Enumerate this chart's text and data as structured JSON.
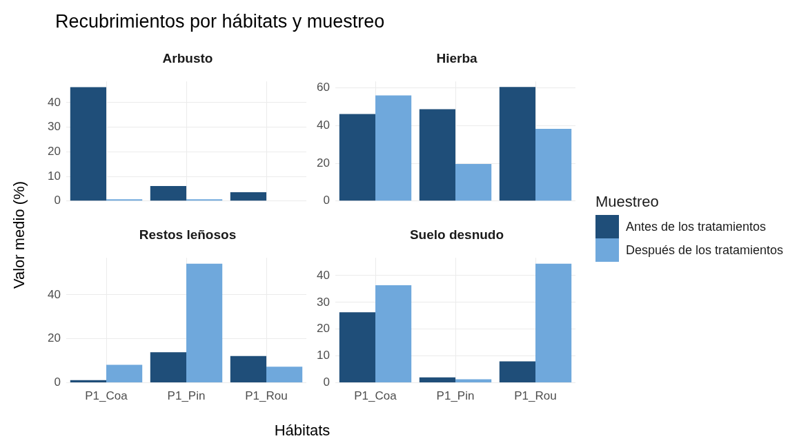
{
  "chart_data": [
    {
      "type": "bar",
      "title": "Arbusto",
      "annotations": [
        "Recubrimientos por hábitats y muestreo"
      ],
      "ylabel": "Valor medio (%)",
      "legend": "right",
      "legend_title": "Muestreo",
      "categories": [
        null,
        null,
        null
      ],
      "ylim": [
        0,
        48.6
      ],
      "yticks": [
        0,
        10,
        20,
        30,
        40
      ],
      "grid": true,
      "tick_labels": "y",
      "series": [
        {
          "name": "Antes de los tratamientos",
          "color": "#1f4e79",
          "values": [
            46.3,
            6.1,
            3.6
          ]
        },
        {
          "name": "Después de los tratamientos",
          "color": "#6fa8dc",
          "values": [
            0.7,
            0.7,
            null
          ]
        }
      ]
    },
    {
      "type": "bar",
      "title": "Hierba",
      "categories": [
        null,
        null,
        null
      ],
      "ylim": [
        0,
        63.5
      ],
      "yticks": [
        0,
        20,
        40,
        60
      ],
      "grid": true,
      "tick_labels": "y",
      "series": [
        {
          "color": "#1f4e79",
          "values": [
            46.2,
            48.8,
            60.6
          ]
        },
        {
          "color": "#6fa8dc",
          "values": [
            56.1,
            19.7,
            38.3
          ]
        }
      ]
    },
    {
      "type": "bar",
      "title": "Restos leñosos",
      "categories": [
        "P1_Coa",
        "P1_Pin",
        "P1_Rou"
      ],
      "ylim": [
        0,
        56.8
      ],
      "yticks": [
        0,
        20,
        40
      ],
      "grid": true,
      "series": [
        {
          "color": "#1f4e79",
          "values": [
            1.2,
            13.9,
            12.2
          ]
        },
        {
          "color": "#6fa8dc",
          "values": [
            8.2,
            54.1,
            7.3
          ]
        }
      ]
    },
    {
      "type": "bar",
      "title": "Suelo desnudo",
      "xlabel": "Hábitats",
      "categories": [
        "P1_Coa",
        "P1_Pin",
        "P1_Rou"
      ],
      "ylim": [
        0,
        46.6
      ],
      "yticks": [
        0,
        10,
        20,
        30,
        40
      ],
      "grid": true,
      "series": [
        {
          "color": "#1f4e79",
          "values": [
            26.3,
            2.0,
            8.0
          ]
        },
        {
          "color": "#6fa8dc",
          "values": [
            36.4,
            1.3,
            44.4
          ]
        }
      ]
    }
  ]
}
